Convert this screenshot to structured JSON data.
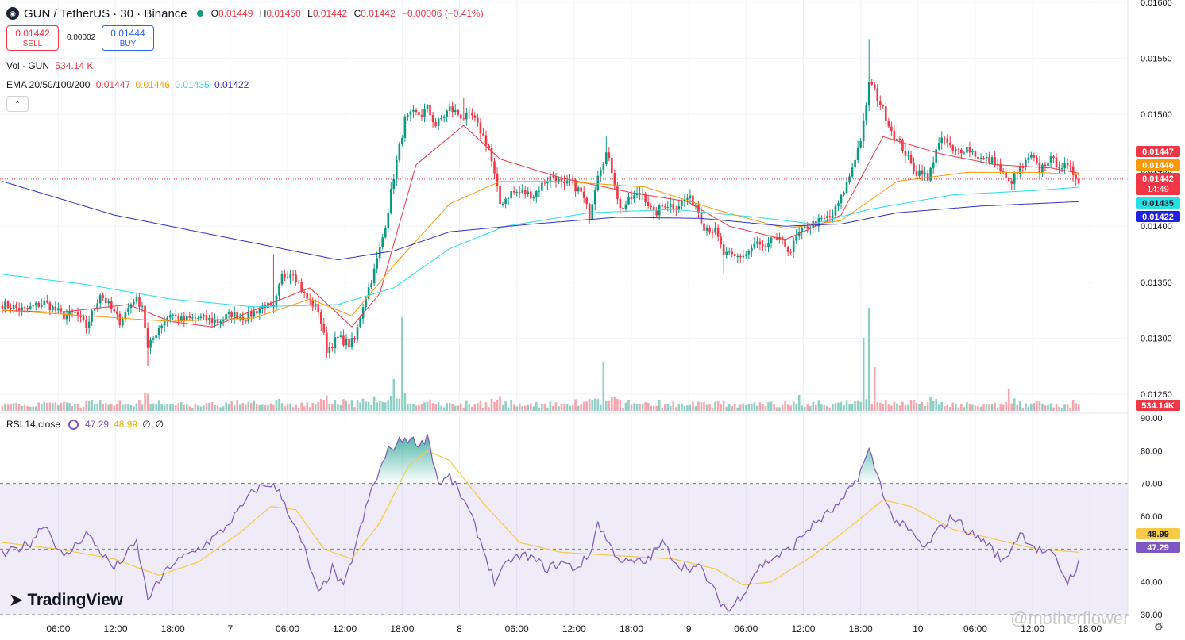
{
  "header": {
    "symbol": "GUN / TetherUS · 30 · Binance",
    "logo_icon": "gun-token-logo-icon",
    "o_label": "O",
    "o_value": "0.01449",
    "h_label": "H",
    "h_value": "0.01450",
    "l_label": "L",
    "l_value": "0.01442",
    "c_label": "C",
    "c_value": "0.01442",
    "change": "−0.00006 (−0.41%)"
  },
  "trade": {
    "sell_price": "0.01442",
    "sell_label": "SELL",
    "spread": "0.00002",
    "buy_price": "0.01444",
    "buy_label": "BUY"
  },
  "volume_legend": {
    "label": "Vol · GUN",
    "value": "534.14 K"
  },
  "ema_legend": {
    "label": "EMA 20/50/100/200",
    "v20": "0.01447",
    "v50": "0.01446",
    "v100": "0.01435",
    "v200": "0.01422"
  },
  "rsi_legend": {
    "label": "RSI 14 close",
    "rsi": "47.29",
    "ma": "48.99",
    "n1": "∅",
    "n2": "∅"
  },
  "brand": "TradingView",
  "watermark": "@motherflower",
  "colors": {
    "up": "#089981",
    "down": "#f23645",
    "up_vol": "#8fcfc4",
    "down_vol": "#f5a6ae",
    "ema20": "#f23645",
    "ema50": "#ff9800",
    "ema100": "#26e0e6",
    "ema200": "#3030c8",
    "rsi": "#7e57c2",
    "rsi_ma": "#f7c948"
  },
  "chart_data": [
    {
      "type": "candlestick",
      "title": "GUN / TetherUS · 30 · Binance",
      "y_ticks": [
        "0.01600",
        "0.01550",
        "0.01500",
        "0.01450",
        "0.01400",
        "0.01350",
        "0.01300",
        "0.01250"
      ],
      "ylim": [
        0.01233,
        0.01602
      ],
      "x_ticks": [
        "06:00",
        "12:00",
        "18:00",
        "7",
        "06:00",
        "12:00",
        "18:00",
        "8",
        "06:00",
        "12:00",
        "18:00",
        "9",
        "06:00",
        "12:00",
        "18:00",
        "10",
        "06:00",
        "12:00",
        "18:00"
      ],
      "last_price": "0.01442",
      "countdown": "14:49",
      "ema_labels": {
        "ema20": "0.01447",
        "ema50": "0.01446",
        "ema100": "0.01435",
        "ema200": "0.01422"
      },
      "volume_label": "534.14K",
      "close_path": [
        [
          0,
          0.0133
        ],
        [
          8,
          0.01325
        ],
        [
          15,
          0.01332
        ],
        [
          22,
          0.0132
        ],
        [
          26,
          0.01322
        ],
        [
          30,
          0.0131
        ],
        [
          35,
          0.0134
        ],
        [
          42,
          0.01315
        ],
        [
          47,
          0.01335
        ],
        [
          50,
          0.0133
        ],
        [
          52,
          0.0129
        ],
        [
          56,
          0.0131
        ],
        [
          60,
          0.01322
        ],
        [
          64,
          0.01316
        ],
        [
          70,
          0.01318
        ],
        [
          77,
          0.01315
        ],
        [
          82,
          0.01322
        ],
        [
          87,
          0.01318
        ],
        [
          94,
          0.0133
        ],
        [
          97,
          0.01325
        ],
        [
          100,
          0.01355
        ],
        [
          104,
          0.0136
        ],
        [
          108,
          0.01338
        ],
        [
          113,
          0.01325
        ],
        [
          116,
          0.0129
        ],
        [
          120,
          0.013
        ],
        [
          124,
          0.01295
        ],
        [
          126,
          0.01298
        ],
        [
          129,
          0.0133
        ],
        [
          133,
          0.0136
        ],
        [
          136,
          0.0139
        ],
        [
          138,
          0.01415
        ],
        [
          140,
          0.01445
        ],
        [
          142,
          0.0147
        ],
        [
          144,
          0.01495
        ],
        [
          147,
          0.015
        ],
        [
          150,
          0.015
        ],
        [
          152,
          0.01505
        ],
        [
          155,
          0.0149
        ],
        [
          160,
          0.01505
        ],
        [
          165,
          0.01497
        ],
        [
          168,
          0.01498
        ],
        [
          171,
          0.01485
        ],
        [
          174,
          0.0147
        ],
        [
          178,
          0.0142
        ],
        [
          182,
          0.0143
        ],
        [
          186,
          0.0143
        ],
        [
          190,
          0.01428
        ],
        [
          194,
          0.0144
        ],
        [
          197,
          0.01445
        ],
        [
          201,
          0.01435
        ],
        [
          203,
          0.0144
        ],
        [
          207,
          0.0143
        ],
        [
          210,
          0.0141
        ],
        [
          213,
          0.01448
        ],
        [
          216,
          0.01465
        ],
        [
          218,
          0.0145
        ],
        [
          221,
          0.01415
        ],
        [
          225,
          0.01425
        ],
        [
          229,
          0.0143
        ],
        [
          233,
          0.0141
        ],
        [
          237,
          0.0142
        ],
        [
          241,
          0.01418
        ],
        [
          245,
          0.01425
        ],
        [
          248,
          0.0142
        ],
        [
          251,
          0.014
        ],
        [
          255,
          0.01395
        ],
        [
          258,
          0.01375
        ],
        [
          262,
          0.01372
        ],
        [
          266,
          0.01375
        ],
        [
          270,
          0.01385
        ],
        [
          273,
          0.01378
        ],
        [
          276,
          0.0139
        ],
        [
          279,
          0.01385
        ],
        [
          282,
          0.01378
        ],
        [
          284,
          0.0139
        ],
        [
          288,
          0.014
        ],
        [
          293,
          0.01405
        ],
        [
          297,
          0.0141
        ],
        [
          300,
          0.01425
        ],
        [
          303,
          0.01445
        ],
        [
          307,
          0.01478
        ],
        [
          309,
          0.01505
        ],
        [
          310,
          0.0153
        ],
        [
          313,
          0.01515
        ],
        [
          316,
          0.01498
        ],
        [
          319,
          0.0148
        ],
        [
          322,
          0.0147
        ],
        [
          325,
          0.01455
        ],
        [
          327,
          0.01448
        ],
        [
          329,
          0.0145
        ],
        [
          331,
          0.0144
        ],
        [
          334,
          0.0147
        ],
        [
          337,
          0.01478
        ],
        [
          340,
          0.01466
        ],
        [
          345,
          0.0147
        ],
        [
          350,
          0.0146
        ],
        [
          355,
          0.01458
        ],
        [
          360,
          0.01438
        ],
        [
          364,
          0.0145
        ],
        [
          368,
          0.01462
        ],
        [
          371,
          0.0145
        ],
        [
          374,
          0.0146
        ],
        [
          378,
          0.01455
        ],
        [
          382,
          0.0145
        ],
        [
          385,
          0.01442
        ]
      ],
      "last_index": 385,
      "highs": [
        [
          310,
          0.01567
        ],
        [
          165,
          0.01515
        ],
        [
          216,
          0.0148
        ],
        [
          97,
          0.01375
        ],
        [
          320,
          0.0149
        ],
        [
          388,
          0.01463
        ]
      ],
      "lows": [
        [
          52,
          0.01275
        ],
        [
          120,
          0.0129
        ],
        [
          258,
          0.01358
        ],
        [
          280,
          0.01368
        ],
        [
          233,
          0.01405
        ]
      ],
      "ema20_path": [
        [
          0,
          0.01325
        ],
        [
          20,
          0.01323
        ],
        [
          45,
          0.0133
        ],
        [
          60,
          0.01315
        ],
        [
          75,
          0.0131
        ],
        [
          95,
          0.0133
        ],
        [
          110,
          0.01345
        ],
        [
          125,
          0.0131
        ],
        [
          135,
          0.0134
        ],
        [
          148,
          0.01455
        ],
        [
          165,
          0.0149
        ],
        [
          178,
          0.0146
        ],
        [
          200,
          0.01443
        ],
        [
          225,
          0.0143
        ],
        [
          245,
          0.01422
        ],
        [
          260,
          0.014
        ],
        [
          280,
          0.01388
        ],
        [
          300,
          0.0141
        ],
        [
          315,
          0.0148
        ],
        [
          335,
          0.01465
        ],
        [
          355,
          0.01455
        ],
        [
          375,
          0.01452
        ],
        [
          386,
          0.01447
        ]
      ],
      "ema50_path": [
        [
          0,
          0.01325
        ],
        [
          30,
          0.0132
        ],
        [
          60,
          0.01315
        ],
        [
          90,
          0.01318
        ],
        [
          110,
          0.01335
        ],
        [
          125,
          0.0132
        ],
        [
          140,
          0.01365
        ],
        [
          160,
          0.0142
        ],
        [
          178,
          0.0144
        ],
        [
          200,
          0.0144
        ],
        [
          230,
          0.01435
        ],
        [
          255,
          0.01415
        ],
        [
          280,
          0.01398
        ],
        [
          300,
          0.01405
        ],
        [
          320,
          0.0144
        ],
        [
          345,
          0.01448
        ],
        [
          370,
          0.01448
        ],
        [
          386,
          0.01446
        ]
      ],
      "ema100_path": [
        [
          0,
          0.01357
        ],
        [
          30,
          0.01348
        ],
        [
          60,
          0.01335
        ],
        [
          90,
          0.01328
        ],
        [
          120,
          0.0133
        ],
        [
          140,
          0.01345
        ],
        [
          160,
          0.0138
        ],
        [
          180,
          0.014
        ],
        [
          210,
          0.01412
        ],
        [
          240,
          0.01415
        ],
        [
          270,
          0.01408
        ],
        [
          290,
          0.01402
        ],
        [
          310,
          0.01415
        ],
        [
          340,
          0.01428
        ],
        [
          370,
          0.01432
        ],
        [
          386,
          0.01435
        ]
      ],
      "ema200_path": [
        [
          0,
          0.0144
        ],
        [
          40,
          0.0141
        ],
        [
          80,
          0.0139
        ],
        [
          120,
          0.0137
        ],
        [
          140,
          0.01378
        ],
        [
          160,
          0.01395
        ],
        [
          190,
          0.01402
        ],
        [
          220,
          0.01408
        ],
        [
          250,
          0.01407
        ],
        [
          280,
          0.014
        ],
        [
          300,
          0.01402
        ],
        [
          320,
          0.01412
        ],
        [
          350,
          0.01418
        ],
        [
          386,
          0.01422
        ]
      ]
    },
    {
      "type": "line",
      "title": "RSI 14 close",
      "y_ticks": [
        "90.00",
        "80.00",
        "70.00",
        "60.00",
        "50.00",
        "40.00",
        "30.00"
      ],
      "ylim": [
        30,
        90
      ],
      "upper_band": 70,
      "middle_band": 50,
      "lower_band": 30,
      "rsi_label": "47.29",
      "ma_label": "48.99",
      "rsi_path": [
        [
          0,
          48
        ],
        [
          10,
          52
        ],
        [
          15,
          58
        ],
        [
          22,
          47
        ],
        [
          30,
          55
        ],
        [
          40,
          44
        ],
        [
          48,
          52
        ],
        [
          52,
          35
        ],
        [
          60,
          45
        ],
        [
          70,
          50
        ],
        [
          78,
          55
        ],
        [
          85,
          62
        ],
        [
          90,
          68
        ],
        [
          96,
          70
        ],
        [
          100,
          66
        ],
        [
          108,
          50
        ],
        [
          113,
          36
        ],
        [
          118,
          44
        ],
        [
          122,
          38
        ],
        [
          126,
          50
        ],
        [
          132,
          68
        ],
        [
          138,
          80
        ],
        [
          144,
          84
        ],
        [
          150,
          82
        ],
        [
          152,
          85
        ],
        [
          156,
          70
        ],
        [
          160,
          72
        ],
        [
          165,
          65
        ],
        [
          170,
          55
        ],
        [
          176,
          40
        ],
        [
          182,
          47
        ],
        [
          188,
          48
        ],
        [
          195,
          44
        ],
        [
          200,
          46
        ],
        [
          205,
          44
        ],
        [
          210,
          48
        ],
        [
          213,
          58
        ],
        [
          218,
          50
        ],
        [
          222,
          46
        ],
        [
          230,
          46
        ],
        [
          236,
          52
        ],
        [
          242,
          45
        ],
        [
          250,
          44
        ],
        [
          256,
          35
        ],
        [
          260,
          31
        ],
        [
          266,
          38
        ],
        [
          270,
          44
        ],
        [
          275,
          47
        ],
        [
          282,
          50
        ],
        [
          288,
          56
        ],
        [
          294,
          60
        ],
        [
          300,
          64
        ],
        [
          306,
          72
        ],
        [
          310,
          80
        ],
        [
          314,
          70
        ],
        [
          318,
          60
        ],
        [
          325,
          55
        ],
        [
          330,
          50
        ],
        [
          334,
          55
        ],
        [
          340,
          60
        ],
        [
          346,
          55
        ],
        [
          352,
          52
        ],
        [
          358,
          46
        ],
        [
          364,
          55
        ],
        [
          370,
          50
        ],
        [
          376,
          48
        ],
        [
          381,
          40
        ],
        [
          386,
          47
        ]
      ],
      "ma_path": [
        [
          0,
          52
        ],
        [
          20,
          50
        ],
        [
          40,
          47
        ],
        [
          56,
          42
        ],
        [
          70,
          46
        ],
        [
          85,
          55
        ],
        [
          96,
          63
        ],
        [
          105,
          62
        ],
        [
          115,
          50
        ],
        [
          125,
          47
        ],
        [
          135,
          58
        ],
        [
          145,
          75
        ],
        [
          152,
          80
        ],
        [
          160,
          77
        ],
        [
          172,
          64
        ],
        [
          185,
          52
        ],
        [
          200,
          49
        ],
        [
          220,
          48
        ],
        [
          240,
          47
        ],
        [
          255,
          44
        ],
        [
          265,
          39
        ],
        [
          275,
          40
        ],
        [
          290,
          48
        ],
        [
          305,
          58
        ],
        [
          315,
          65
        ],
        [
          325,
          63
        ],
        [
          340,
          56
        ],
        [
          355,
          53
        ],
        [
          370,
          50
        ],
        [
          386,
          49
        ]
      ]
    }
  ]
}
